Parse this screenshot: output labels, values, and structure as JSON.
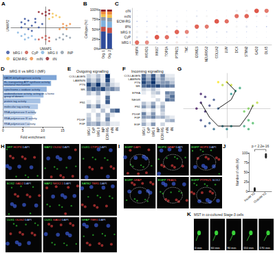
{
  "chart_data": [
    {
      "panel": "A",
      "type": "scatter",
      "x_label": "UMAP1",
      "y_label": "UMAP2",
      "xlim": [
        -10,
        10
      ],
      "ylim": [
        -10,
        12
      ],
      "tick_labels": false,
      "legend": "bottom",
      "series": [
        {
          "name": "bRG I",
          "color": "#2f4b9a",
          "x": [
            -6,
            -5,
            -4,
            -7,
            -3,
            -5,
            -2,
            -6,
            -4,
            -3,
            -1,
            -7
          ],
          "y": [
            2,
            4,
            1,
            0,
            3,
            -1,
            0,
            5,
            -2,
            5,
            2,
            3
          ]
        },
        {
          "name": "CyP",
          "color": "#c65146",
          "x": [
            -1,
            0,
            1,
            -2,
            0,
            1
          ],
          "y": [
            -6,
            -7,
            -6,
            -7,
            -5,
            -8
          ]
        },
        {
          "name": "bRG II",
          "color": "#7fb2de",
          "x": [
            -6,
            -5,
            -7,
            -4,
            -3,
            -6,
            -8
          ],
          "y": [
            -4,
            -6,
            -5,
            -5,
            -7,
            -7,
            -3
          ]
        },
        {
          "name": "INP",
          "color": "#8a98a8",
          "x": [
            4,
            5,
            6,
            3,
            5,
            7
          ],
          "y": [
            -6,
            -7,
            -5,
            -7,
            -4,
            -6
          ]
        },
        {
          "name": "ECM-RG",
          "color": "#f2c14e",
          "x": [
            2,
            3,
            1,
            4,
            2
          ],
          "y": [
            6,
            7,
            5,
            6,
            8
          ]
        },
        {
          "name": "mIN",
          "color": "#ef8a3c",
          "x": [
            5,
            6,
            4,
            7,
            6,
            5
          ],
          "y": [
            0,
            1,
            -1,
            2,
            -1,
            2
          ]
        },
        {
          "name": "iIN",
          "color": "#8e1b24",
          "x": [
            -1,
            0,
            1,
            0,
            -2,
            1
          ],
          "y": [
            8,
            9,
            8,
            7,
            9,
            10
          ]
        }
      ]
    },
    {
      "panel": "B",
      "type": "bar",
      "stacked": true,
      "y_label": "Celltype (%)",
      "categories": [
        "Org. 1",
        "Org. 2"
      ],
      "ylim": [
        0,
        100
      ],
      "yticks": [
        {
          "value": 0,
          "label": "0%"
        },
        {
          "value": 25,
          "label": "25%"
        },
        {
          "value": 50,
          "label": "50%"
        },
        {
          "value": 75,
          "label": "75%"
        },
        {
          "value": 100,
          "label": "100%"
        }
      ],
      "series": [
        {
          "color": "#2f4b9a",
          "values": [
            44,
            40
          ]
        },
        {
          "color": "#c65146",
          "values": [
            12,
            14
          ]
        },
        {
          "color": "#7fb2de",
          "values": [
            16,
            15
          ]
        },
        {
          "color": "#8a98a8",
          "values": [
            9,
            10
          ]
        },
        {
          "color": "#f2c14e",
          "values": [
            7,
            8
          ]
        },
        {
          "color": "#ef8a3c",
          "values": [
            7,
            8
          ]
        },
        {
          "color": "#8e1b24",
          "values": [
            5,
            5
          ]
        }
      ]
    },
    {
      "panel": "C",
      "type": "dot",
      "categories": [
        "HOPX",
        "MOXD1",
        "MKI67",
        "TOP2A",
        "PTPRZ1",
        "TNC",
        "EOMES",
        "NEUROG2",
        "COL1A2",
        "LUM",
        "DCX",
        "STMN2",
        "GAD2",
        "DLX5"
      ],
      "rows": [
        "bRG I",
        "CyP",
        "bRG II",
        "IPN",
        "ECM-RG",
        "mIN",
        "cIN"
      ],
      "color_range": [
        -1,
        2
      ],
      "avg_expression": [
        [
          1.8,
          1.5,
          0.2,
          0.1,
          0.6,
          0.4,
          -0.6,
          -0.5,
          -0.4,
          -0.5,
          -0.7,
          -0.6,
          -0.8,
          -0.7
        ],
        [
          0.3,
          0.1,
          2.0,
          1.8,
          0.2,
          0.1,
          0.3,
          0.2,
          -0.5,
          -0.6,
          -0.6,
          -0.7,
          -0.8,
          -0.7
        ],
        [
          0.5,
          0.6,
          0.1,
          0.0,
          1.9,
          1.6,
          -0.2,
          -0.4,
          0.2,
          0.1,
          -0.6,
          -0.5,
          -0.7,
          -0.8
        ],
        [
          -0.5,
          -0.6,
          0.4,
          0.3,
          -0.3,
          -0.5,
          1.9,
          1.7,
          -0.6,
          -0.7,
          0.5,
          0.3,
          -0.4,
          -0.3
        ],
        [
          -0.2,
          0.0,
          -0.6,
          -0.7,
          0.3,
          0.5,
          -0.7,
          -0.6,
          2.0,
          1.8,
          -0.5,
          -0.6,
          -0.7,
          -0.8
        ],
        [
          -0.7,
          -0.6,
          -0.5,
          -0.6,
          -0.7,
          -0.8,
          0.3,
          0.5,
          -0.6,
          -0.7,
          1.8,
          1.9,
          0.4,
          0.3
        ],
        [
          -0.8,
          -0.7,
          -0.6,
          -0.7,
          -0.8,
          -0.6,
          -0.5,
          -0.6,
          -0.7,
          -0.8,
          0.4,
          0.6,
          2.0,
          1.7
        ]
      ],
      "pct_expressed": [
        [
          85,
          78,
          30,
          25,
          50,
          45,
          10,
          12,
          15,
          10,
          8,
          10,
          5,
          6
        ],
        [
          40,
          30,
          90,
          85,
          35,
          30,
          25,
          20,
          8,
          6,
          10,
          8,
          5,
          5
        ],
        [
          55,
          50,
          25,
          20,
          88,
          80,
          15,
          10,
          30,
          25,
          10,
          12,
          6,
          5
        ],
        [
          12,
          10,
          40,
          35,
          15,
          10,
          85,
          80,
          6,
          5,
          45,
          40,
          15,
          18
        ],
        [
          20,
          25,
          8,
          6,
          40,
          45,
          5,
          6,
          90,
          82,
          10,
          8,
          5,
          4
        ],
        [
          6,
          8,
          10,
          8,
          5,
          4,
          35,
          40,
          6,
          5,
          82,
          88,
          40,
          35
        ],
        [
          5,
          6,
          8,
          6,
          5,
          8,
          10,
          8,
          5,
          4,
          45,
          50,
          90,
          84
        ]
      ]
    },
    {
      "panel": "D",
      "type": "bar",
      "orientation": "horizontal",
      "title": "bRG II vs bRG I (MF)",
      "x_label": "Fold enrichment",
      "categories": [
        "NADH dehydrogenase activity",
        "H+-transporting ATP synthase activity, rotational mechanism",
        "cytochrome-c oxidase activity",
        "oxidoreductase activity, acting on a heme group of donors",
        "protein tag activity",
        "molecular tag activity",
        "RNA polymerase II activity",
        "RNA polymerase III activity",
        "RNA polymerase I activity"
      ],
      "values": [
        13.5,
        12.1,
        11.0,
        10.2,
        9.4,
        8.8,
        8.0,
        7.4,
        6.8
      ],
      "colors": [
        "#7ea5d6",
        "#88acd9",
        "#92b3dd",
        "#9cbae0",
        "#a6c1e4",
        "#b0c8e7",
        "#bacfea",
        "#c4d6ee",
        "#cedcf1"
      ],
      "xlim": [
        0,
        15
      ],
      "xticks": [
        0,
        5,
        10,
        15
      ]
    },
    {
      "panel": "E",
      "type": "heatmap",
      "title": "Outgoing signalling",
      "categories": [
        "bRG I",
        "CyP",
        "bRG II",
        "INP",
        "ECM-RG",
        "mIN",
        "iIN"
      ],
      "rows": [
        "COLLAGEN",
        "LAMININ",
        "PTN",
        "MK",
        null,
        null,
        "FN1",
        null,
        null,
        null,
        "PDGF",
        "FGF"
      ],
      "color_range": [
        0,
        1
      ],
      "cells": [
        [
          0.2,
          0.1,
          0.3,
          0.1,
          1.0,
          0.0,
          0.0
        ],
        [
          0.4,
          0.2,
          0.5,
          0.1,
          0.9,
          0.1,
          0.0
        ],
        [
          0.9,
          0.5,
          1.0,
          0.3,
          0.6,
          0.2,
          0.1
        ],
        [
          0.6,
          0.8,
          0.7,
          0.9,
          0.5,
          0.6,
          0.4
        ],
        [
          0.3,
          0.1,
          0.4,
          0.0,
          0.2,
          0.0,
          0.0
        ],
        [
          0.0,
          0.0,
          0.1,
          0.0,
          0.7,
          0.0,
          0.0
        ],
        [
          0.1,
          0.0,
          0.2,
          0.0,
          0.8,
          0.0,
          0.0
        ],
        [
          0.5,
          0.2,
          0.6,
          0.1,
          0.1,
          0.0,
          0.0
        ],
        [
          0.0,
          0.1,
          0.0,
          0.3,
          0.0,
          0.6,
          0.8
        ],
        [
          0.2,
          0.0,
          0.3,
          0.0,
          0.4,
          0.1,
          0.0
        ],
        [
          0.3,
          0.0,
          0.2,
          0.0,
          0.6,
          0.0,
          0.0
        ],
        [
          0.4,
          0.3,
          0.5,
          0.2,
          0.3,
          0.1,
          0.1
        ]
      ]
    },
    {
      "panel": "F",
      "type": "heatmap",
      "title": "Incoming signalling",
      "categories": [
        "bRG I",
        "CyP",
        "bRG II",
        "INP",
        "ECM-RG",
        "mIN",
        "iIN"
      ],
      "rows": [
        "COLLAGEN",
        "LAMININ",
        "PTN",
        "MK",
        null,
        "EPHA",
        null,
        "NEGR",
        null,
        "FN1",
        null,
        "PDGF",
        "FGF",
        null,
        "EGF"
      ],
      "color_range": [
        0,
        1
      ],
      "cells": [
        [
          0.7,
          0.3,
          0.8,
          0.2,
          0.6,
          0.1,
          0.1
        ],
        [
          0.8,
          0.4,
          0.9,
          0.3,
          0.5,
          0.2,
          0.2
        ],
        [
          0.9,
          0.6,
          1.0,
          0.4,
          0.5,
          0.5,
          0.3
        ],
        [
          0.7,
          0.8,
          0.8,
          0.9,
          0.6,
          0.7,
          0.6
        ],
        [
          0.2,
          0.1,
          0.3,
          0.1,
          0.0,
          0.0,
          0.0
        ],
        [
          0.1,
          0.0,
          0.2,
          0.3,
          0.0,
          0.6,
          0.5
        ],
        [
          0.0,
          0.0,
          0.1,
          0.0,
          0.0,
          0.4,
          0.7
        ],
        [
          0.0,
          0.0,
          0.0,
          0.2,
          0.0,
          0.7,
          0.6
        ],
        [
          0.3,
          0.1,
          0.4,
          0.0,
          0.2,
          0.0,
          0.0
        ],
        [
          0.5,
          0.2,
          0.6,
          0.1,
          0.4,
          0.0,
          0.0
        ],
        [
          0.1,
          0.0,
          0.2,
          0.0,
          0.3,
          0.0,
          0.0
        ],
        [
          0.6,
          0.1,
          0.5,
          0.0,
          0.2,
          0.0,
          0.0
        ],
        [
          0.5,
          0.4,
          0.6,
          0.3,
          0.4,
          0.2,
          0.1
        ],
        [
          0.2,
          0.0,
          0.1,
          0.0,
          0.0,
          0.3,
          0.4
        ],
        [
          0.4,
          0.1,
          0.5,
          0.0,
          0.2,
          0.0,
          0.0
        ]
      ]
    },
    {
      "panel": "G",
      "type": "scatter",
      "tick_labels": false,
      "xlim": [
        -10,
        10
      ],
      "ylim": [
        -10,
        12
      ],
      "color_range": [
        0,
        1
      ],
      "x": [
        -6,
        -5,
        -4,
        -7,
        -3,
        -5,
        -2,
        -6,
        -6,
        -5,
        -4,
        -3,
        -1,
        0,
        1,
        4,
        5,
        6,
        5,
        5,
        6,
        4,
        7,
        2,
        3,
        1,
        -1,
        0,
        1,
        -2
      ],
      "y": [
        2,
        4,
        1,
        0,
        3,
        -1,
        0,
        5,
        -4,
        -6,
        -5,
        -7,
        -6,
        -7,
        -6,
        -6,
        -7,
        -5,
        -4,
        0,
        1,
        -1,
        2,
        6,
        7,
        5,
        8,
        9,
        8,
        9
      ],
      "pseudotime": [
        0.1,
        0.15,
        0.2,
        0.05,
        0.25,
        0.12,
        0.3,
        0.08,
        0.2,
        0.25,
        0.3,
        0.35,
        0.4,
        0.45,
        0.5,
        0.6,
        0.65,
        0.7,
        0.68,
        0.8,
        0.85,
        0.78,
        0.9,
        0.55,
        0.6,
        0.5,
        0.9,
        0.95,
        0.92,
        1.0
      ],
      "trajectory": [
        {
          "x": [
            -6,
            -4,
            -2,
            0,
            3,
            5,
            6
          ],
          "y": [
            2,
            -3,
            -6,
            -6,
            -6,
            -2,
            1
          ]
        },
        {
          "x": [
            -2,
            1,
            2,
            0
          ],
          "y": [
            0,
            3,
            6,
            9
          ]
        }
      ]
    },
    {
      "panel": "J",
      "type": "strip",
      "y_label": "Number of cells (%)",
      "categories": [
        "Inside VZ",
        "Outside VZ"
      ],
      "color": "#222222",
      "values": [
        [
          2,
          4,
          6,
          3,
          8,
          5
        ],
        [
          91,
          95,
          88,
          97,
          93,
          90
        ]
      ],
      "ylim": [
        0,
        100
      ],
      "yticks": [
        0,
        25,
        50,
        75,
        100
      ],
      "annotation": "p < 2.2e-16"
    }
  ],
  "images": [
    {
      "panel": "H",
      "tiles": [
        [
          "GFP",
          "HOPX",
          "DAPI"
        ],
        [
          "MAP2",
          "OLIG2",
          "DAPI"
        ],
        [
          "CUX1",
          "CTIP2",
          "DAPI"
        ],
        [
          "SOX2",
          "GAD2",
          "DAPI"
        ],
        [
          "MAP2",
          "NKX2.1",
          "DAPI"
        ],
        [
          "SATB2",
          "TBR1",
          "DAPI"
        ],
        [
          "CUX1",
          "OLIG2",
          "DAPI"
        ],
        [
          "CUX1",
          "GAD2",
          "DAPI"
        ],
        [
          "GFAP",
          "TBR1",
          "DAPI"
        ]
      ]
    },
    {
      "panel": "I",
      "tiles": [
        [
          "EGFP",
          "DAPI"
        ],
        [
          "HOPX",
          "GFAP",
          "DAPI"
        ],
        [
          "EGFP",
          "HOPX",
          "DAPI"
        ],
        [
          "EGFP",
          "GFAP"
        ],
        [
          "EGFP",
          "PEA15"
        ],
        [
          "EGFP",
          "PTPRZ1",
          "SOX2"
        ]
      ]
    },
    {
      "panel": "K",
      "title": "MST in co-cultured Stage-3 cells",
      "frames": [
        "0 min",
        "60 min",
        "90 min",
        "110 min",
        "170 min"
      ]
    }
  ]
}
